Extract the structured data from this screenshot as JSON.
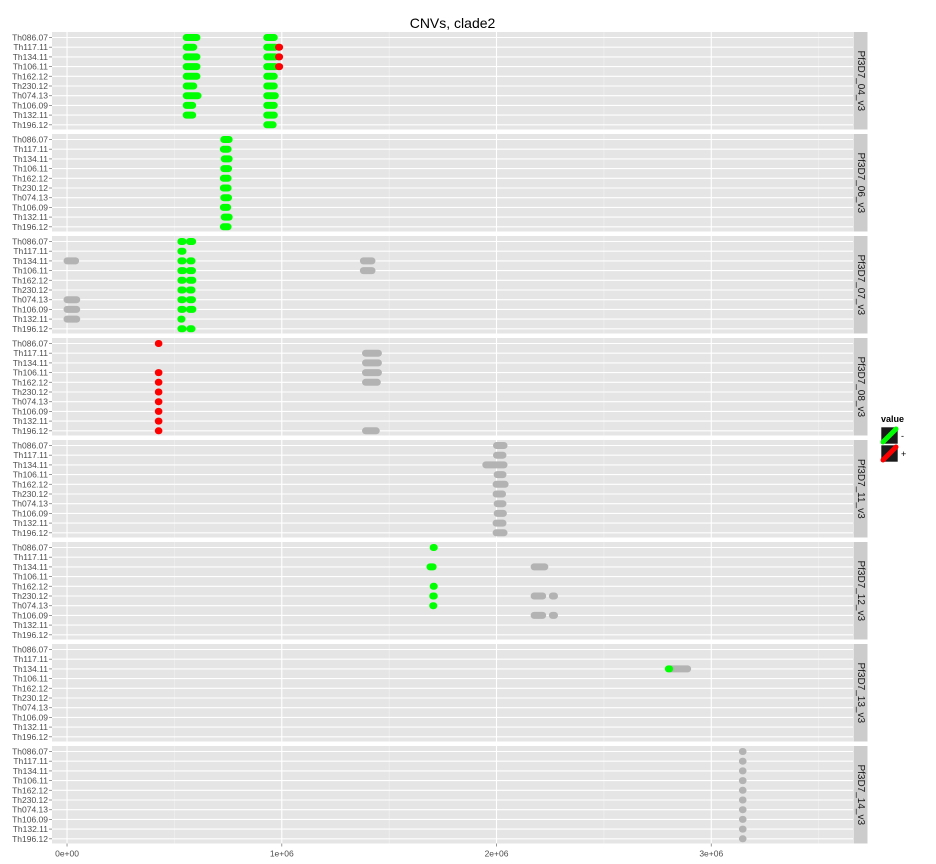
{
  "chart_data": {
    "type": "scatter",
    "title": "CNVs, clade2",
    "xlabel": "",
    "ylabel": "",
    "xlim": [
      -70000,
      3660000
    ],
    "x_ticks": [
      {
        "value": 0,
        "label": "0e+00"
      },
      {
        "value": 1000000,
        "label": "1e+06"
      },
      {
        "value": 2000000,
        "label": "2e+06"
      },
      {
        "value": 3000000,
        "label": "3e+06"
      }
    ],
    "samples": [
      "Th086.07",
      "Th117.11",
      "Th134.11",
      "Th106.11",
      "Th162.12",
      "Th230.12",
      "Th074.13",
      "Th106.09",
      "Th132.11",
      "Th196.12"
    ],
    "legend": {
      "title": "value",
      "placement": "right",
      "entries": [
        {
          "label": "-",
          "color": "#00ff00"
        },
        {
          "label": "+",
          "color": "#ff0000"
        }
      ]
    },
    "colors": {
      "minus": "#00ff00",
      "plus": "#ff0000",
      "other": "#b3b3b3",
      "panel": "#e5e5e5",
      "strip": "#cccccc",
      "grid": "#ffffff"
    },
    "panels": [
      {
        "name": "Pf3D7_04_v3",
        "segments": [
          {
            "row": 0,
            "x0": 555000,
            "x1": 605000,
            "v": "-"
          },
          {
            "row": 1,
            "x0": 555000,
            "x1": 590000,
            "v": "-"
          },
          {
            "row": 2,
            "x0": 555000,
            "x1": 605000,
            "v": "-"
          },
          {
            "row": 3,
            "x0": 555000,
            "x1": 605000,
            "v": "-"
          },
          {
            "row": 4,
            "x0": 555000,
            "x1": 605000,
            "v": "-"
          },
          {
            "row": 5,
            "x0": 555000,
            "x1": 590000,
            "v": "-"
          },
          {
            "row": 6,
            "x0": 555000,
            "x1": 610000,
            "v": "-"
          },
          {
            "row": 7,
            "x0": 555000,
            "x1": 585000,
            "v": "-"
          },
          {
            "row": 8,
            "x0": 555000,
            "x1": 585000,
            "v": "-"
          },
          {
            "row": 0,
            "x0": 930000,
            "x1": 965000,
            "v": "-"
          },
          {
            "row": 1,
            "x0": 930000,
            "x1": 970000,
            "v": "-"
          },
          {
            "row": 2,
            "x0": 930000,
            "x1": 970000,
            "v": "-"
          },
          {
            "row": 3,
            "x0": 930000,
            "x1": 970000,
            "v": "-"
          },
          {
            "row": 4,
            "x0": 930000,
            "x1": 965000,
            "v": "-"
          },
          {
            "row": 5,
            "x0": 930000,
            "x1": 965000,
            "v": "-"
          },
          {
            "row": 6,
            "x0": 930000,
            "x1": 970000,
            "v": "-"
          },
          {
            "row": 7,
            "x0": 930000,
            "x1": 965000,
            "v": "-"
          },
          {
            "row": 8,
            "x0": 930000,
            "x1": 965000,
            "v": "-"
          },
          {
            "row": 9,
            "x0": 930000,
            "x1": 960000,
            "v": "-"
          },
          {
            "row": 1,
            "x0": 985000,
            "x1": 990000,
            "v": "+"
          },
          {
            "row": 2,
            "x0": 985000,
            "x1": 990000,
            "v": "+"
          },
          {
            "row": 3,
            "x0": 985000,
            "x1": 990000,
            "v": "+"
          }
        ]
      },
      {
        "name": "Pf3D7_06_v3",
        "segments": [
          {
            "row": 0,
            "x0": 730000,
            "x1": 755000,
            "v": "-"
          },
          {
            "row": 1,
            "x0": 728000,
            "x1": 750000,
            "v": "-"
          },
          {
            "row": 2,
            "x0": 732000,
            "x1": 755000,
            "v": "-"
          },
          {
            "row": 3,
            "x0": 730000,
            "x1": 752000,
            "v": "-"
          },
          {
            "row": 4,
            "x0": 728000,
            "x1": 750000,
            "v": "-"
          },
          {
            "row": 5,
            "x0": 728000,
            "x1": 750000,
            "v": "-"
          },
          {
            "row": 6,
            "x0": 730000,
            "x1": 752000,
            "v": "-"
          },
          {
            "row": 7,
            "x0": 728000,
            "x1": 748000,
            "v": "-"
          },
          {
            "row": 8,
            "x0": 732000,
            "x1": 755000,
            "v": "-"
          },
          {
            "row": 9,
            "x0": 728000,
            "x1": 750000,
            "v": "-"
          }
        ]
      },
      {
        "name": "Pf3D7_07_v3",
        "segments": [
          {
            "row": 0,
            "x0": 530000,
            "x1": 540000,
            "v": "-"
          },
          {
            "row": 0,
            "x0": 570000,
            "x1": 585000,
            "v": "-"
          },
          {
            "row": 1,
            "x0": 530000,
            "x1": 540000,
            "v": "-"
          },
          {
            "row": 2,
            "x0": 530000,
            "x1": 540000,
            "v": "-"
          },
          {
            "row": 2,
            "x0": 572000,
            "x1": 582000,
            "v": "-"
          },
          {
            "row": 3,
            "x0": 530000,
            "x1": 542000,
            "v": "-"
          },
          {
            "row": 3,
            "x0": 570000,
            "x1": 584000,
            "v": "-"
          },
          {
            "row": 4,
            "x0": 530000,
            "x1": 540000,
            "v": "-"
          },
          {
            "row": 4,
            "x0": 570000,
            "x1": 586000,
            "v": "-"
          },
          {
            "row": 5,
            "x0": 530000,
            "x1": 540000,
            "v": "-"
          },
          {
            "row": 5,
            "x0": 570000,
            "x1": 582000,
            "v": "-"
          },
          {
            "row": 6,
            "x0": 530000,
            "x1": 540000,
            "v": "-"
          },
          {
            "row": 6,
            "x0": 570000,
            "x1": 584000,
            "v": "-"
          },
          {
            "row": 7,
            "x0": 530000,
            "x1": 540000,
            "v": "-"
          },
          {
            "row": 7,
            "x0": 570000,
            "x1": 586000,
            "v": "-"
          },
          {
            "row": 8,
            "x0": 530000,
            "x1": 535000,
            "v": "-"
          },
          {
            "row": 9,
            "x0": 530000,
            "x1": 540000,
            "v": "-"
          },
          {
            "row": 9,
            "x0": 572000,
            "x1": 582000,
            "v": "-"
          },
          {
            "row": 2,
            "x0": 0,
            "x1": 40000,
            "v": "0"
          },
          {
            "row": 6,
            "x0": 0,
            "x1": 45000,
            "v": "0"
          },
          {
            "row": 7,
            "x0": 0,
            "x1": 45000,
            "v": "0"
          },
          {
            "row": 8,
            "x0": 0,
            "x1": 45000,
            "v": "0"
          },
          {
            "row": 2,
            "x0": 1380000,
            "x1": 1420000,
            "v": "0"
          },
          {
            "row": 3,
            "x0": 1380000,
            "x1": 1420000,
            "v": "0"
          }
        ]
      },
      {
        "name": "Pf3D7_08_v3",
        "segments": [
          {
            "row": 0,
            "x0": 425000,
            "x1": 428000,
            "v": "+"
          },
          {
            "row": 3,
            "x0": 425000,
            "x1": 428000,
            "v": "+"
          },
          {
            "row": 4,
            "x0": 425000,
            "x1": 428000,
            "v": "+"
          },
          {
            "row": 5,
            "x0": 425000,
            "x1": 428000,
            "v": "+"
          },
          {
            "row": 6,
            "x0": 425000,
            "x1": 428000,
            "v": "+"
          },
          {
            "row": 7,
            "x0": 425000,
            "x1": 428000,
            "v": "+"
          },
          {
            "row": 8,
            "x0": 425000,
            "x1": 428000,
            "v": "+"
          },
          {
            "row": 9,
            "x0": 425000,
            "x1": 428000,
            "v": "+"
          },
          {
            "row": 1,
            "x0": 1390000,
            "x1": 1450000,
            "v": "0"
          },
          {
            "row": 2,
            "x0": 1390000,
            "x1": 1450000,
            "v": "0"
          },
          {
            "row": 3,
            "x0": 1390000,
            "x1": 1450000,
            "v": "0"
          },
          {
            "row": 4,
            "x0": 1390000,
            "x1": 1445000,
            "v": "0"
          },
          {
            "row": 9,
            "x0": 1390000,
            "x1": 1440000,
            "v": "0"
          }
        ]
      },
      {
        "name": "Pf3D7_11_v3",
        "segments": [
          {
            "row": 0,
            "x0": 2000000,
            "x1": 2035000,
            "v": "0"
          },
          {
            "row": 1,
            "x0": 2000000,
            "x1": 2030000,
            "v": "0"
          },
          {
            "row": 2,
            "x0": 1950000,
            "x1": 2035000,
            "v": "0"
          },
          {
            "row": 3,
            "x0": 2003000,
            "x1": 2030000,
            "v": "0"
          },
          {
            "row": 4,
            "x0": 1998000,
            "x1": 2040000,
            "v": "0"
          },
          {
            "row": 5,
            "x0": 1998000,
            "x1": 2028000,
            "v": "0"
          },
          {
            "row": 6,
            "x0": 2003000,
            "x1": 2030000,
            "v": "0"
          },
          {
            "row": 7,
            "x0": 2003000,
            "x1": 2032000,
            "v": "0"
          },
          {
            "row": 8,
            "x0": 1998000,
            "x1": 2030000,
            "v": "0"
          },
          {
            "row": 9,
            "x0": 1998000,
            "x1": 2035000,
            "v": "0"
          }
        ]
      },
      {
        "name": "Pf3D7_12_v3",
        "segments": [
          {
            "row": 0,
            "x0": 1705000,
            "x1": 1710000,
            "v": "-"
          },
          {
            "row": 2,
            "x0": 1690000,
            "x1": 1705000,
            "v": "-"
          },
          {
            "row": 4,
            "x0": 1705000,
            "x1": 1710000,
            "v": "-"
          },
          {
            "row": 5,
            "x0": 1703000,
            "x1": 1710000,
            "v": "-"
          },
          {
            "row": 6,
            "x0": 1703000,
            "x1": 1708000,
            "v": "-"
          },
          {
            "row": 2,
            "x0": 2175000,
            "x1": 2225000,
            "v": "0"
          },
          {
            "row": 5,
            "x0": 2175000,
            "x1": 2215000,
            "v": "0"
          },
          {
            "row": 5,
            "x0": 2260000,
            "x1": 2270000,
            "v": "0"
          },
          {
            "row": 7,
            "x0": 2175000,
            "x1": 2215000,
            "v": "0"
          },
          {
            "row": 7,
            "x0": 2260000,
            "x1": 2270000,
            "v": "0"
          }
        ]
      },
      {
        "name": "Pf3D7_13_v3",
        "segments": [
          {
            "row": 2,
            "x0": 2810000,
            "x1": 2890000,
            "v": "0"
          },
          {
            "row": 2,
            "x0": 2800000,
            "x1": 2806000,
            "v": "-"
          }
        ]
      },
      {
        "name": "Pf3D7_14_v3",
        "segments": [
          {
            "row": 0,
            "x0": 3145000,
            "x1": 3148000,
            "v": "0"
          },
          {
            "row": 1,
            "x0": 3145000,
            "x1": 3148000,
            "v": "0"
          },
          {
            "row": 2,
            "x0": 3145000,
            "x1": 3148000,
            "v": "0"
          },
          {
            "row": 3,
            "x0": 3145000,
            "x1": 3148000,
            "v": "0"
          },
          {
            "row": 4,
            "x0": 3145000,
            "x1": 3148000,
            "v": "0"
          },
          {
            "row": 5,
            "x0": 3145000,
            "x1": 3148000,
            "v": "0"
          },
          {
            "row": 6,
            "x0": 3145000,
            "x1": 3148000,
            "v": "0"
          },
          {
            "row": 7,
            "x0": 3145000,
            "x1": 3148000,
            "v": "0"
          },
          {
            "row": 8,
            "x0": 3145000,
            "x1": 3148000,
            "v": "0"
          },
          {
            "row": 9,
            "x0": 3145000,
            "x1": 3148000,
            "v": "0"
          }
        ]
      }
    ]
  }
}
